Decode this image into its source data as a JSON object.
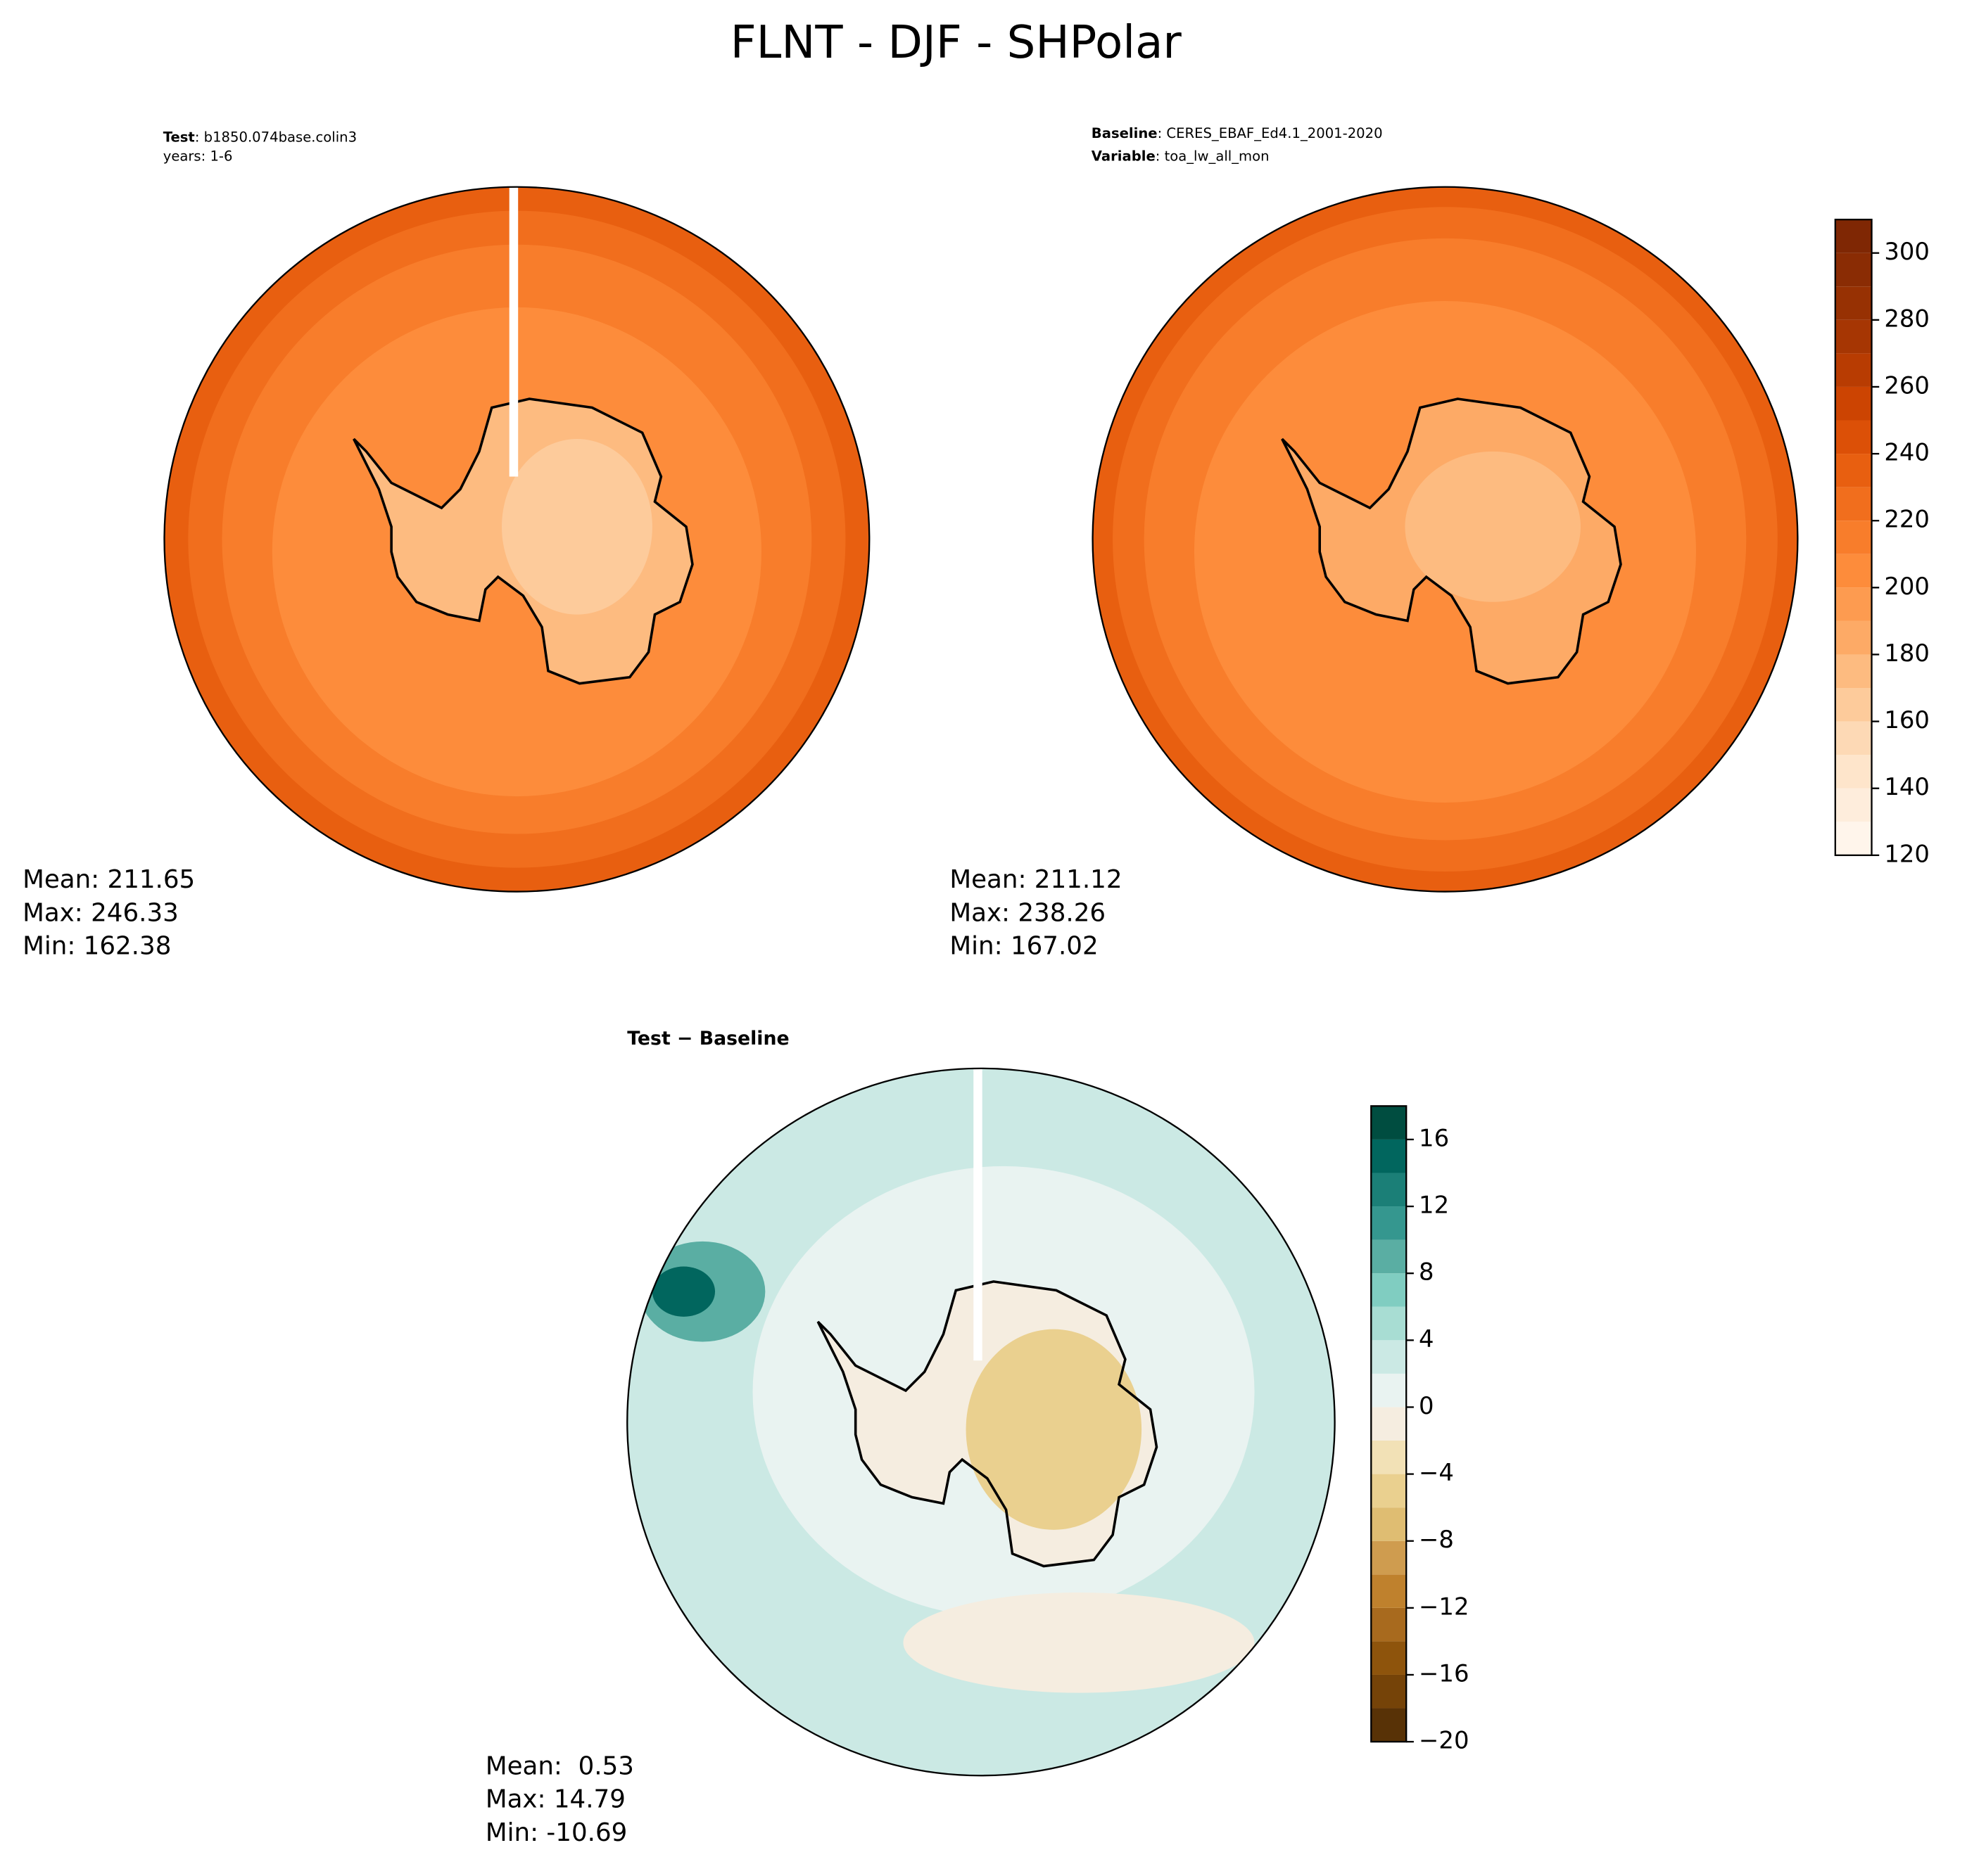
{
  "title": "FLNT - DJF - SHPolar",
  "chart_data": [
    {
      "type": "map",
      "heading": [
        [
          {
            "text": "Test",
            "bold": true
          },
          {
            "text": ": b1850.074base.colin3",
            "bold": false
          }
        ],
        [
          {
            "text": "years: 1-6",
            "bold": false
          }
        ]
      ],
      "stats": [
        "Mean: 211.65",
        "Max: 246.33",
        "Min: 162.38"
      ]
    },
    {
      "type": "map",
      "heading": [
        [
          {
            "text": "Baseline",
            "bold": true
          },
          {
            "text": ": CERES_EBAF_Ed4.1_2001-2020",
            "bold": false
          }
        ],
        [
          {
            "text": "Variable",
            "bold": true
          },
          {
            "text": ": toa_lw_all_mon",
            "bold": false
          }
        ]
      ],
      "stats": [
        "Mean: 211.12",
        "Max: 238.26",
        "Min: 167.02"
      ],
      "colorbar": {
        "ylim": [
          120,
          310
        ],
        "levels": [
          120,
          130,
          140,
          150,
          160,
          170,
          180,
          190,
          200,
          210,
          220,
          230,
          240,
          250,
          260,
          270,
          280,
          290,
          300,
          310
        ],
        "colors": [
          "#fff5eb",
          "#feeddc",
          "#fee5cb",
          "#fdd9b5",
          "#fdcb9b",
          "#fdbb80",
          "#fdaa66",
          "#fd9b50",
          "#fd8c3b",
          "#f87d2b",
          "#f16e1d",
          "#e85f10",
          "#dc5007",
          "#cc4402",
          "#b83c02",
          "#a63603",
          "#973103",
          "#8a2c04",
          "#7f2704"
        ],
        "yticks": [
          120,
          140,
          160,
          180,
          200,
          220,
          240,
          260,
          280,
          300
        ]
      }
    },
    {
      "type": "map",
      "heading": [
        [
          {
            "text": "Test − Baseline",
            "bold": true
          }
        ]
      ],
      "stats": [
        "Mean:  0.53",
        "Max: 14.79",
        "Min: -10.69"
      ],
      "colorbar": {
        "ylim": [
          -20,
          18
        ],
        "levels": [
          -20,
          -18,
          -16,
          -14,
          -12,
          -10,
          -8,
          -6,
          -4,
          -2,
          0,
          2,
          4,
          6,
          8,
          10,
          12,
          14,
          16,
          18
        ],
        "colors": [
          "#583206",
          "#754308",
          "#8e540c",
          "#a86a1e",
          "#bf812d",
          "#cf9c4f",
          "#dfbd72",
          "#ead08f",
          "#f2e1b6",
          "#f5ede0",
          "#e9f3f1",
          "#cbe9e4",
          "#a8ddd3",
          "#80cdc1",
          "#5aaea3",
          "#35978f",
          "#1b7f77",
          "#01665e",
          "#004d40"
        ],
        "yticks": [
          {
            "value": -20,
            "label": "−20"
          },
          {
            "value": -16,
            "label": "−16"
          },
          {
            "value": -12,
            "label": "−12"
          },
          {
            "value": -8,
            "label": "−8"
          },
          {
            "value": -4,
            "label": "−4"
          },
          0,
          4,
          8,
          12,
          16
        ]
      }
    }
  ]
}
